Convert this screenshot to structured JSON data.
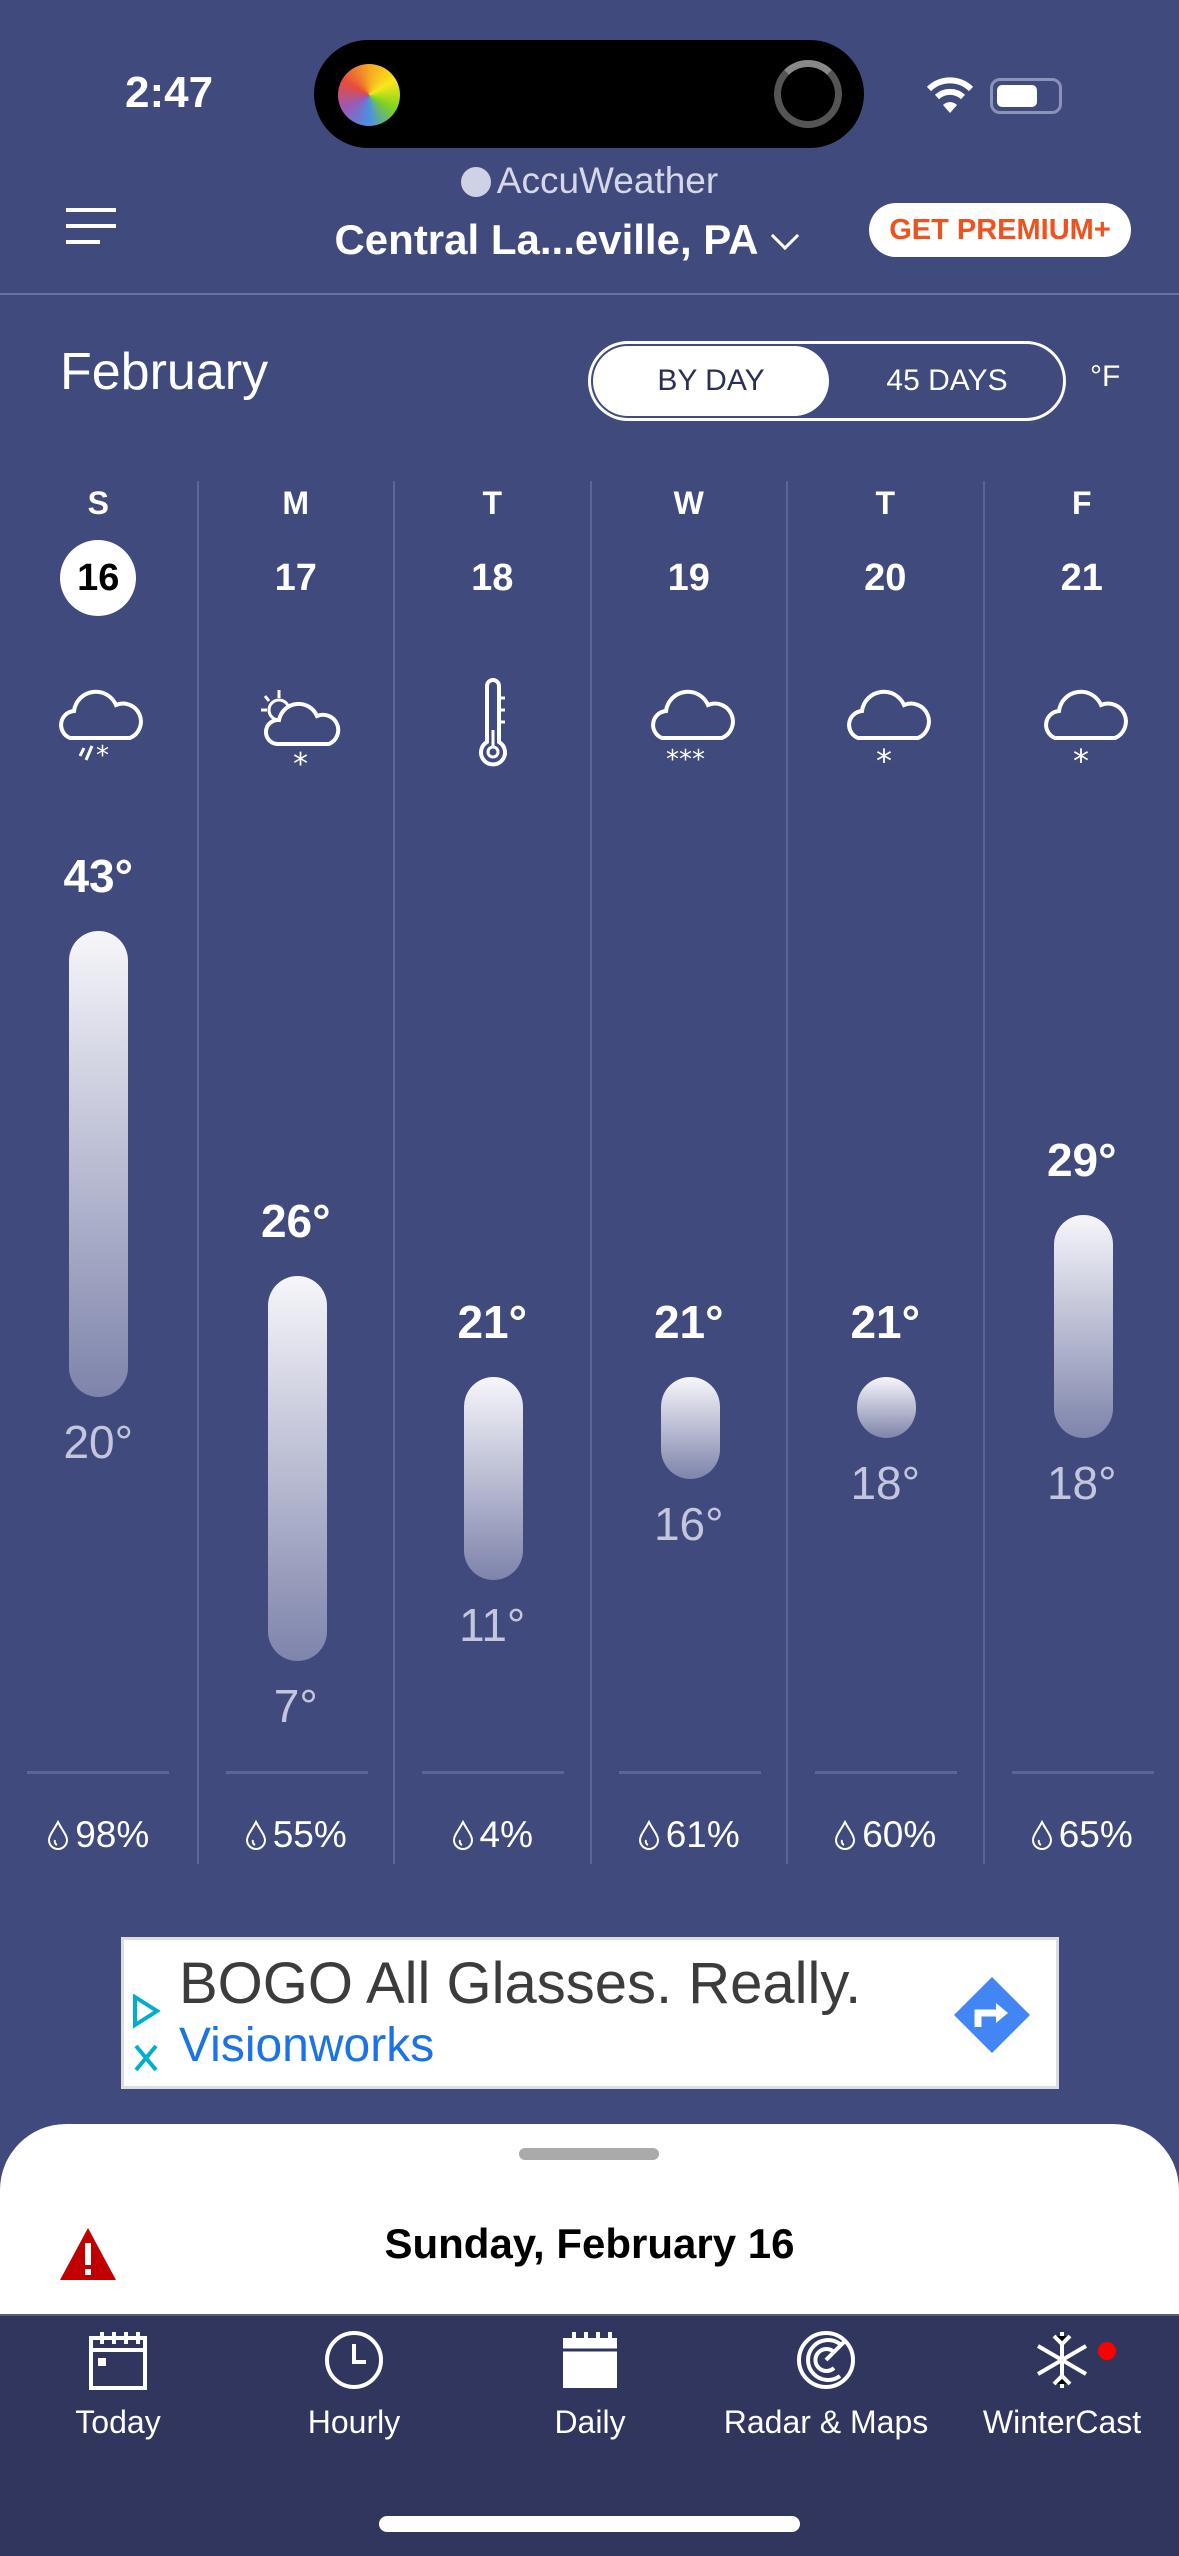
{
  "status_bar": {
    "time": "2:47"
  },
  "header": {
    "brand": "AccuWeather",
    "location": "Central La...eville, PA",
    "premium_label": "GET PREMIUM+"
  },
  "calendar": {
    "month": "February",
    "toggle": {
      "by_day": "BY DAY",
      "days45": "45 DAYS",
      "selected": "BY DAY"
    },
    "unit": "°F"
  },
  "days": [
    {
      "letter": "S",
      "date": "16",
      "icon": "rain-snow-icon",
      "high": 43,
      "high_label": "43°",
      "low": 20,
      "low_label": "20°",
      "precip": "98%",
      "selected": true
    },
    {
      "letter": "M",
      "date": "17",
      "icon": "partly-sunny-snow-icon",
      "high": 26,
      "high_label": "26°",
      "low": 7,
      "low_label": "7°",
      "precip": "55%"
    },
    {
      "letter": "T",
      "date": "18",
      "icon": "thermometer-icon",
      "high": 21,
      "high_label": "21°",
      "low": 11,
      "low_label": "11°",
      "precip": "4%"
    },
    {
      "letter": "W",
      "date": "19",
      "icon": "heavy-snow-icon",
      "high": 21,
      "high_label": "21°",
      "low": 16,
      "low_label": "16°",
      "precip": "61%"
    },
    {
      "letter": "T",
      "date": "20",
      "icon": "snow-icon",
      "high": 21,
      "high_label": "21°",
      "low": 18,
      "low_label": "18°",
      "precip": "60%"
    },
    {
      "letter": "F",
      "date": "21",
      "icon": "snow-icon",
      "high": 29,
      "high_label": "29°",
      "low": 18,
      "low_label": "18°",
      "precip": "65%"
    }
  ],
  "ad": {
    "headline": "BOGO All Glasses. Really.",
    "brand": "Visionworks"
  },
  "sheet": {
    "title": "Sunday, February 16"
  },
  "tabs": [
    {
      "label": "Today",
      "icon": "calendar-today-icon"
    },
    {
      "label": "Hourly",
      "icon": "clock-icon"
    },
    {
      "label": "Daily",
      "icon": "calendar-icon"
    },
    {
      "label": "Radar & Maps",
      "icon": "radar-icon"
    },
    {
      "label": "WinterCast",
      "icon": "snowflake-icon"
    }
  ],
  "colors": {
    "background": "#414a7c",
    "tabbar": "#30365e",
    "premium": "#f0521d",
    "alert": "#c00000",
    "ad_link": "#1a73e8"
  }
}
